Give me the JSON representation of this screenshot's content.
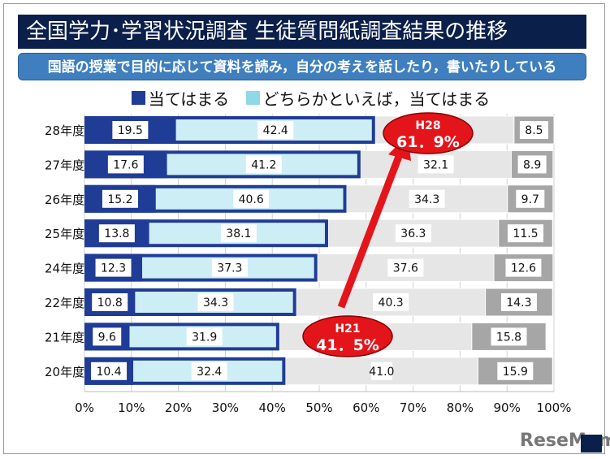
{
  "title": "全国学力･学習状況調査 生徒質問紙調査結果の推移",
  "subtitle": "国語の授業で目的に応じて資料を読み，自分の考えを話したり，書いたりしている",
  "legend": [
    "当てはまる",
    "どちらかといえば，当てはまる"
  ],
  "callouts": [
    {
      "year": "H28",
      "value": "61．9%"
    },
    {
      "year": "H21",
      "value": "41．5%"
    }
  ],
  "logo": "ReseMom",
  "colors": {
    "series1": "#1f3c96",
    "series2": "#cdeef5",
    "series3": "#e6e6e6",
    "series4": "#a6a6a6",
    "outline": "#1f3c96",
    "callout": "#e3151b",
    "title_bg": "#0a1f4a",
    "subtitle_bg": "#3f7fbf"
  },
  "chart_data": {
    "type": "bar",
    "orientation": "horizontal",
    "stacked": true,
    "percent": true,
    "categories": [
      "28年度",
      "27年度",
      "26年度",
      "25年度",
      "24年度",
      "22年度",
      "21年度",
      "20年度"
    ],
    "series": [
      {
        "name": "当てはまる",
        "values": [
          19.5,
          17.6,
          15.2,
          13.8,
          12.3,
          10.8,
          9.6,
          10.4
        ]
      },
      {
        "name": "どちらかといえば，当てはまる",
        "values": [
          42.4,
          41.2,
          40.6,
          38.1,
          37.3,
          34.3,
          31.9,
          32.4
        ]
      },
      {
        "values": [
          29.6,
          32.1,
          34.3,
          36.3,
          37.6,
          40.3,
          41.0,
          41.0
        ],
        "labels_shown": [
          false,
          true,
          true,
          true,
          true,
          true,
          false,
          true
        ]
      },
      {
        "values": [
          8.5,
          8.9,
          9.7,
          11.5,
          12.6,
          14.3,
          15.8,
          15.9
        ]
      }
    ],
    "xticks": [
      "0%",
      "10%",
      "20%",
      "30%",
      "40%",
      "50%",
      "60%",
      "70%",
      "80%",
      "90%",
      "100%"
    ],
    "xlim": [
      0,
      100
    ],
    "legend_position": "top"
  }
}
